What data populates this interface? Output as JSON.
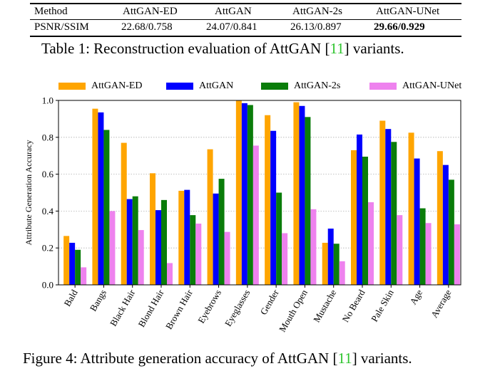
{
  "table": {
    "headers": [
      "Method",
      "AttGAN-ED",
      "AttGAN",
      "AttGAN-2s",
      "AttGAN-UNet"
    ],
    "row": [
      "PSNR/SSIM",
      "22.68/0.758",
      "24.07/0.841",
      "26.13/0.897",
      "29.66/0.929"
    ],
    "caption_prefix": "Table 1: Reconstruction evaluation of AttGAN [",
    "caption_ref": "11",
    "caption_suffix": "] variants."
  },
  "figure": {
    "caption_prefix": "Figure 4: Attribute generation accuracy of AttGAN [",
    "caption_ref": "11",
    "caption_suffix": "] variants."
  },
  "colors": {
    "AttGAN-ED": "#ffa500",
    "AttGAN": "#0000ff",
    "AttGAN-2s": "#0a7d0a",
    "AttGAN-UNet": "#ee82ee",
    "citation": "#2ec42e"
  },
  "chart_data": {
    "type": "bar",
    "ylabel": "Attribute Generation Accuracy",
    "xlabel": "",
    "ylim": [
      0,
      1.0
    ],
    "yticks": [
      "0.0",
      "0.2",
      "0.4",
      "0.6",
      "0.8",
      "1.0"
    ],
    "grid": "horizontal dotted",
    "legend_position": "top",
    "categories": [
      "Bald",
      "Bangs",
      "Black Hair",
      "Blond Hair",
      "Brown Hair",
      "Eyebrows",
      "Eyeglasses",
      "Gender",
      "Mouth Open",
      "Mustache",
      "No Beard",
      "Pale Skin",
      "Age",
      "Average"
    ],
    "series": [
      {
        "name": "AttGAN-ED",
        "values": [
          0.265,
          0.955,
          0.77,
          0.605,
          0.51,
          0.735,
          0.998,
          0.92,
          0.99,
          0.228,
          0.73,
          0.89,
          0.825,
          0.725
        ]
      },
      {
        "name": "AttGAN",
        "values": [
          0.228,
          0.935,
          0.465,
          0.405,
          0.515,
          0.495,
          0.985,
          0.835,
          0.97,
          0.305,
          0.815,
          0.845,
          0.685,
          0.65
        ]
      },
      {
        "name": "AttGAN-2s",
        "values": [
          0.19,
          0.84,
          0.48,
          0.46,
          0.378,
          0.575,
          0.975,
          0.5,
          0.91,
          0.223,
          0.695,
          0.775,
          0.415,
          0.57
        ]
      },
      {
        "name": "AttGAN-UNet",
        "values": [
          0.095,
          0.4,
          0.297,
          0.118,
          0.332,
          0.287,
          0.755,
          0.28,
          0.41,
          0.128,
          0.448,
          0.378,
          0.335,
          0.328
        ]
      }
    ]
  }
}
